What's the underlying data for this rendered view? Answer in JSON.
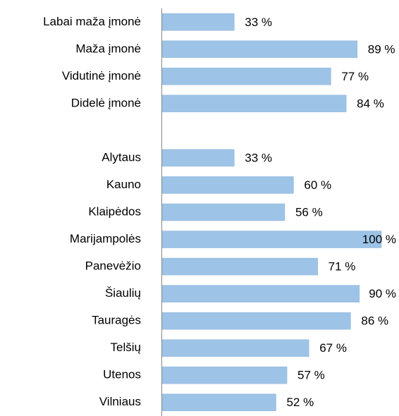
{
  "chart_data": {
    "type": "bar",
    "orientation": "horizontal",
    "categories": [
      "Labai maža įmonė",
      "Maža įmonė",
      "Vidutinė įmonė",
      "Didelė įmonė",
      null,
      "Alytaus",
      "Kauno",
      "Klaipėdos",
      "Marijampolės",
      "Panevėžio",
      "Šiaulių",
      "Tauragės",
      "Telšių",
      "Utenos",
      "Vilniaus"
    ],
    "values": [
      33,
      89,
      77,
      84,
      null,
      33,
      60,
      56,
      100,
      71,
      90,
      86,
      67,
      57,
      52
    ],
    "value_labels": [
      "33 %",
      "89 %",
      "77 %",
      "84 %",
      null,
      "33 %",
      "60 %",
      "56 %",
      "100 %",
      "71 %",
      "90 %",
      "86 %",
      "67 %",
      "57 %",
      "52 %"
    ],
    "color": "#9dc3e6",
    "xlim": [
      0,
      100
    ]
  }
}
